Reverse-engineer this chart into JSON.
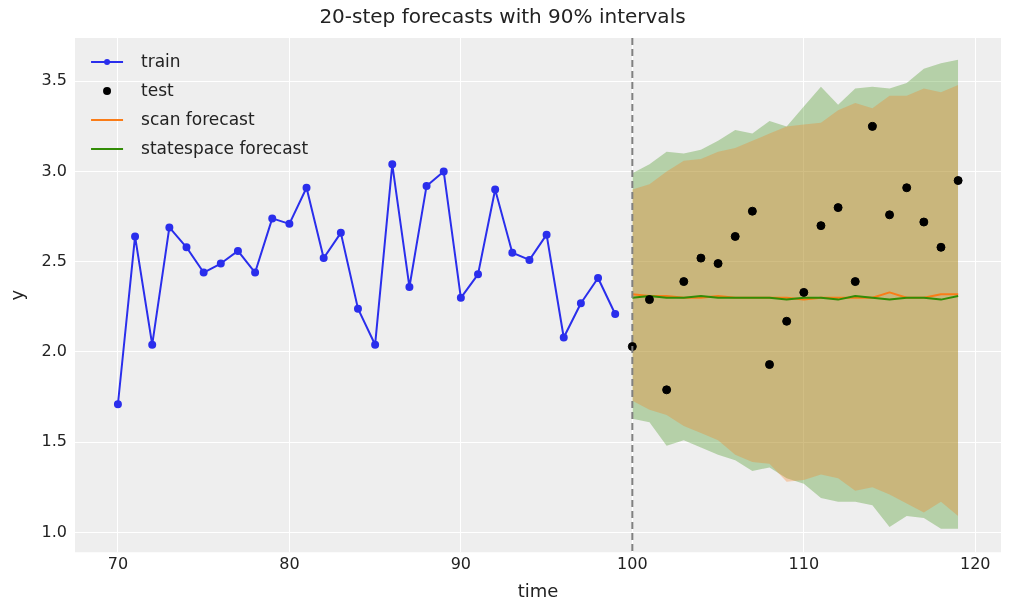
{
  "chart_data": {
    "type": "line",
    "title": "20-step forecasts with 90% intervals",
    "xlabel": "time",
    "ylabel": "y",
    "xlim": [
      67.5,
      121.5
    ],
    "xticks": [
      70,
      80,
      90,
      100,
      110,
      120
    ],
    "ylim": [
      0.89,
      3.74
    ],
    "yticks": [
      {
        "value": 1.0,
        "label": "1.0"
      },
      {
        "value": 1.5,
        "label": "1.5"
      },
      {
        "value": 2.0,
        "label": "2.0"
      },
      {
        "value": 2.5,
        "label": "2.5"
      },
      {
        "value": 3.0,
        "label": "3.0"
      },
      {
        "value": 3.5,
        "label": "3.5"
      }
    ],
    "grid": true,
    "legend": "top left",
    "ref_lines": [
      {
        "axis": "x",
        "value": 100,
        "line_style": "dashed",
        "color": "#808080"
      }
    ],
    "series": [
      {
        "name": "train",
        "type": "line",
        "color": "#2a2eec",
        "marker": "circle",
        "x": [
          70,
          71,
          72,
          73,
          74,
          75,
          76,
          77,
          78,
          79,
          80,
          81,
          82,
          83,
          84,
          85,
          86,
          87,
          88,
          89,
          90,
          91,
          92,
          93,
          94,
          95,
          96,
          97,
          98,
          99
        ],
        "values": [
          1.71,
          2.64,
          2.04,
          2.69,
          2.58,
          2.44,
          2.49,
          2.56,
          2.44,
          2.74,
          2.71,
          2.91,
          2.52,
          2.66,
          2.24,
          2.04,
          3.04,
          2.36,
          2.92,
          3.0,
          2.3,
          2.43,
          2.9,
          2.55,
          2.51,
          2.65,
          2.08,
          2.27,
          2.41,
          2.21
        ]
      },
      {
        "name": "test",
        "type": "scatter",
        "color": "#000000",
        "marker": "circle",
        "x": [
          100,
          101,
          102,
          103,
          104,
          105,
          106,
          107,
          108,
          109,
          110,
          111,
          112,
          113,
          114,
          115,
          116,
          117,
          118,
          119
        ],
        "values": [
          2.03,
          2.29,
          1.79,
          2.39,
          2.52,
          2.49,
          2.64,
          2.78,
          1.93,
          2.17,
          2.33,
          2.7,
          2.8,
          2.39,
          3.25,
          2.76,
          2.91,
          2.72,
          2.58,
          2.95
        ]
      },
      {
        "name": "scan forecast",
        "type": "line",
        "color": "#fa7c17",
        "marker": "none",
        "x": [
          100,
          101,
          102,
          103,
          104,
          105,
          106,
          107,
          108,
          109,
          110,
          111,
          112,
          113,
          114,
          115,
          116,
          117,
          118,
          119
        ],
        "values": [
          2.32,
          2.31,
          2.31,
          2.3,
          2.3,
          2.31,
          2.3,
          2.3,
          2.3,
          2.3,
          2.29,
          2.3,
          2.3,
          2.3,
          2.3,
          2.33,
          2.3,
          2.3,
          2.32,
          2.32
        ],
        "lower": [
          1.73,
          1.68,
          1.65,
          1.59,
          1.55,
          1.51,
          1.43,
          1.39,
          1.38,
          1.28,
          1.29,
          1.32,
          1.3,
          1.23,
          1.25,
          1.21,
          1.16,
          1.11,
          1.17,
          1.09
        ],
        "upper": [
          2.9,
          2.93,
          3.0,
          3.06,
          3.07,
          3.11,
          3.13,
          3.17,
          3.21,
          3.25,
          3.26,
          3.27,
          3.34,
          3.38,
          3.35,
          3.42,
          3.42,
          3.46,
          3.44,
          3.48
        ]
      },
      {
        "name": "statespace forecast",
        "type": "line",
        "color": "#328c06",
        "marker": "none",
        "x": [
          100,
          101,
          102,
          103,
          104,
          105,
          106,
          107,
          108,
          109,
          110,
          111,
          112,
          113,
          114,
          115,
          116,
          117,
          118,
          119
        ],
        "values": [
          2.3,
          2.31,
          2.3,
          2.3,
          2.31,
          2.3,
          2.3,
          2.3,
          2.3,
          2.29,
          2.3,
          2.3,
          2.29,
          2.31,
          2.3,
          2.29,
          2.3,
          2.3,
          2.29,
          2.31
        ],
        "lower": [
          1.63,
          1.61,
          1.48,
          1.51,
          1.47,
          1.43,
          1.4,
          1.34,
          1.36,
          1.3,
          1.27,
          1.19,
          1.17,
          1.17,
          1.15,
          1.03,
          1.09,
          1.08,
          1.02,
          1.02
        ],
        "upper": [
          2.99,
          3.04,
          3.11,
          3.1,
          3.12,
          3.17,
          3.23,
          3.21,
          3.28,
          3.25,
          3.36,
          3.47,
          3.37,
          3.46,
          3.47,
          3.46,
          3.49,
          3.57,
          3.6,
          3.62
        ]
      }
    ]
  }
}
